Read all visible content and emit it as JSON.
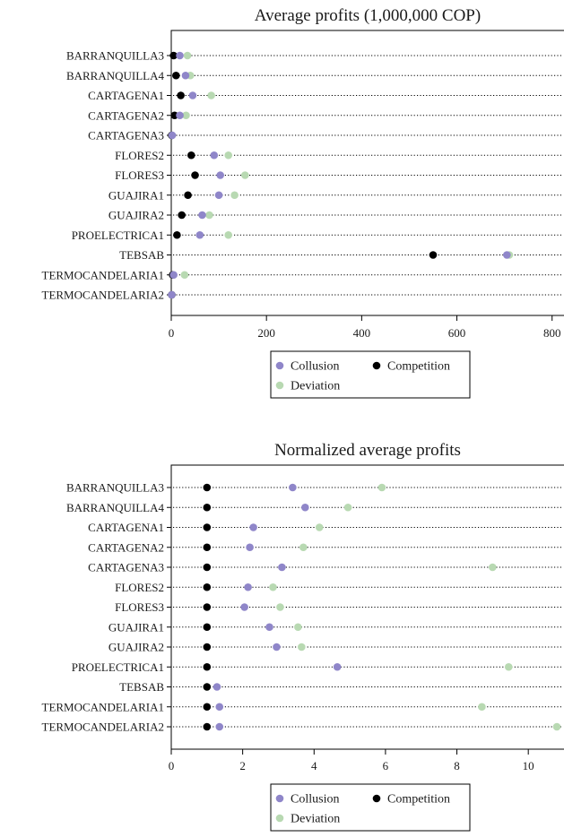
{
  "colors": {
    "Collusion": "#8f86c9",
    "Competition": "#000000",
    "Deviation": "#b8d9b2"
  },
  "chart_data": [
    {
      "type": "scatter",
      "title": "Average profits (1,000,000 COP)",
      "categories": [
        "BARRANQUILLA3",
        "BARRANQUILLA4",
        "CARTAGENA1",
        "CARTAGENA2",
        "CARTAGENA3",
        "FLORES2",
        "FLORES3",
        "GUAJIRA1",
        "GUAJIRA2",
        "PROELECTRICA1",
        "TEBSAB",
        "TERMOCANDELARIA1",
        "TERMOCANDELARIA2"
      ],
      "series": [
        {
          "name": "Deviation",
          "values": [
            34,
            40,
            84,
            31,
            1,
            120,
            155,
            133,
            80,
            120,
            710,
            28,
            1
          ]
        },
        {
          "name": "Competition",
          "values": [
            5,
            10,
            20,
            7,
            1,
            42,
            50,
            35,
            22,
            12,
            550,
            3,
            1
          ]
        },
        {
          "name": "Collusion",
          "values": [
            18,
            30,
            45,
            18,
            2,
            90,
            103,
            100,
            65,
            60,
            705,
            5,
            1
          ]
        }
      ],
      "xlim": [
        0,
        825
      ],
      "xticks": [
        0,
        200,
        400,
        600,
        800
      ],
      "legend": [
        "Collusion",
        "Competition",
        "Deviation"
      ]
    },
    {
      "type": "scatter",
      "title": "Normalized average profits",
      "categories": [
        "BARRANQUILLA3",
        "BARRANQUILLA4",
        "CARTAGENA1",
        "CARTAGENA2",
        "CARTAGENA3",
        "FLORES2",
        "FLORES3",
        "GUAJIRA1",
        "GUAJIRA2",
        "PROELECTRICA1",
        "TEBSAB",
        "TERMOCANDELARIA1",
        "TERMOCANDELARIA2"
      ],
      "series": [
        {
          "name": "Deviation",
          "values": [
            5.9,
            4.95,
            4.15,
            3.7,
            9.0,
            2.85,
            3.05,
            3.55,
            3.65,
            9.45,
            1.0,
            8.7,
            10.8
          ]
        },
        {
          "name": "Competition",
          "values": [
            1,
            1,
            1,
            1,
            1,
            1,
            1,
            1,
            1,
            1,
            1,
            1,
            1
          ]
        },
        {
          "name": "Collusion",
          "values": [
            3.4,
            3.75,
            2.3,
            2.2,
            3.1,
            2.15,
            2.05,
            2.75,
            2.95,
            4.65,
            1.28,
            1.35,
            1.35
          ]
        }
      ],
      "xlim": [
        0,
        11
      ],
      "xticks": [
        0,
        2,
        4,
        6,
        8,
        10
      ],
      "legend": [
        "Collusion",
        "Competition",
        "Deviation"
      ]
    }
  ]
}
